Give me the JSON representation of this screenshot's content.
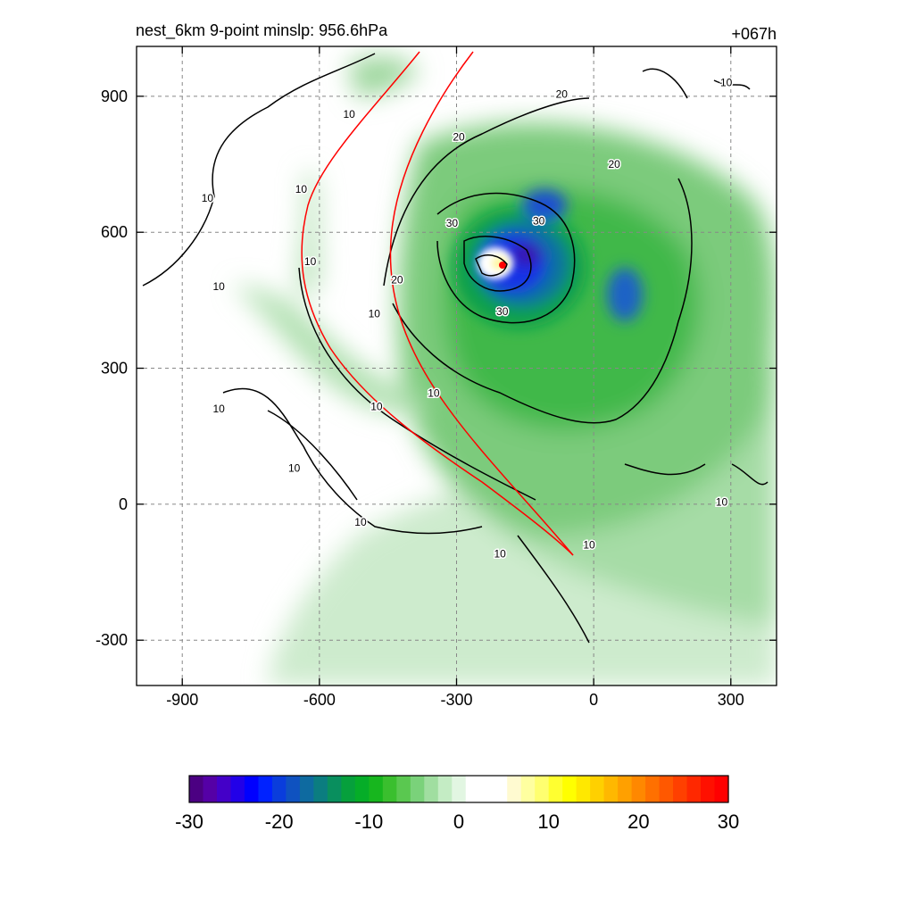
{
  "chart_data": {
    "type": "contour",
    "title": "nest_6km  9-point minslp: 956.6hPa",
    "time_label": "+067h",
    "xlim": [
      -1000,
      400
    ],
    "ylim": [
      -400,
      1010
    ],
    "x_ticks": [
      -900,
      -600,
      -300,
      0,
      300
    ],
    "y_ticks": [
      -300,
      0,
      300,
      600,
      900
    ],
    "x_tick_labels": [
      "-900",
      "-600",
      "-300",
      "0",
      "300"
    ],
    "y_tick_labels": [
      "-300",
      "0",
      "300",
      "600",
      "900"
    ],
    "grid": true,
    "center": {
      "x": -200,
      "y": 525
    },
    "contour_labels": [
      {
        "x": -535,
        "y": 860,
        "text": "10"
      },
      {
        "x": -295,
        "y": 810,
        "text": "20"
      },
      {
        "x": -70,
        "y": 905,
        "text": "20"
      },
      {
        "x": 45,
        "y": 750,
        "text": "20"
      },
      {
        "x": -845,
        "y": 675,
        "text": "10"
      },
      {
        "x": -640,
        "y": 695,
        "text": "10"
      },
      {
        "x": -620,
        "y": 535,
        "text": "10"
      },
      {
        "x": -820,
        "y": 480,
        "text": "10"
      },
      {
        "x": -310,
        "y": 620,
        "text": "30"
      },
      {
        "x": -120,
        "y": 625,
        "text": "30"
      },
      {
        "x": -200,
        "y": 425,
        "text": "30"
      },
      {
        "x": -430,
        "y": 495,
        "text": "20"
      },
      {
        "x": -480,
        "y": 420,
        "text": "10"
      },
      {
        "x": -350,
        "y": 245,
        "text": "10"
      },
      {
        "x": -820,
        "y": 210,
        "text": "10"
      },
      {
        "x": -475,
        "y": 215,
        "text": "10"
      },
      {
        "x": -655,
        "y": 80,
        "text": "10"
      },
      {
        "x": -510,
        "y": -40,
        "text": "10"
      },
      {
        "x": -205,
        "y": -110,
        "text": "10"
      },
      {
        "x": -10,
        "y": -90,
        "text": "10"
      },
      {
        "x": 280,
        "y": 5,
        "text": "10"
      },
      {
        "x": 290,
        "y": 930,
        "text": "10"
      }
    ],
    "colorbar": {
      "min": -30,
      "max": 30,
      "tick_values": [
        -30,
        -20,
        -10,
        0,
        10,
        20,
        30
      ],
      "tick_labels": [
        "-30",
        "-20",
        "-10",
        "0",
        "10",
        "20",
        "30"
      ],
      "colors": [
        "#4b0082",
        "#5500a6",
        "#4400c8",
        "#2200e8",
        "#0000ff",
        "#0022ff",
        "#0a3ddc",
        "#0f52c0",
        "#0e6aa0",
        "#0b7d80",
        "#098f5e",
        "#06a03c",
        "#05ad28",
        "#17b61e",
        "#3abf2e",
        "#5ac850",
        "#7ad27a",
        "#a0dea0",
        "#c4ecc4",
        "#e2f6e2",
        "#ffffff",
        "#ffffff",
        "#ffffff",
        "#fffad0",
        "#ffffa0",
        "#ffff70",
        "#ffff30",
        "#ffff00",
        "#ffe800",
        "#ffd000",
        "#ffb800",
        "#ffa000",
        "#ff8800",
        "#ff7000",
        "#ff5800",
        "#ff4000",
        "#ff2800",
        "#ff1000",
        "#ff0000"
      ]
    }
  }
}
